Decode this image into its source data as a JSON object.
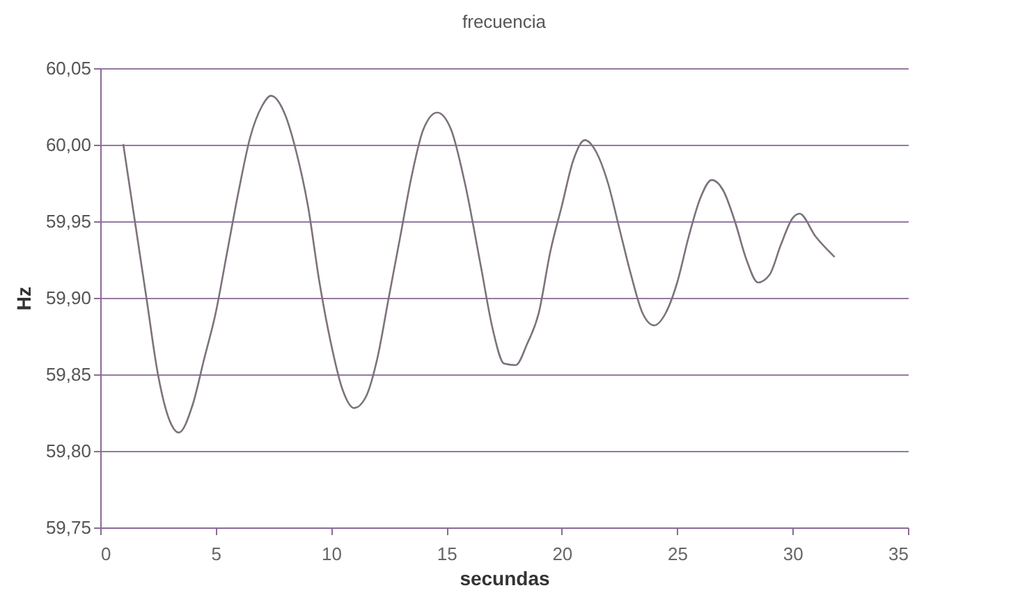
{
  "chart_data": {
    "type": "line",
    "title": "frecuencia",
    "xlabel": "secundas",
    "ylabel": "Hz",
    "x": [
      1,
      1.5,
      2,
      2.5,
      3,
      3.4,
      4,
      4.5,
      5,
      5.5,
      6,
      6.5,
      7,
      7.4,
      8,
      8.5,
      9,
      9.5,
      10,
      10.5,
      11,
      11.5,
      12,
      12.5,
      13,
      13.5,
      14,
      14.6,
      15.2,
      15.8,
      16.5,
      17,
      17.5,
      18,
      18.5,
      19,
      19.5,
      20,
      20.5,
      21,
      21.5,
      22,
      22.5,
      23,
      23.5,
      24,
      24.5,
      25,
      25.5,
      26,
      26.5,
      27,
      27.5,
      28,
      28.5,
      29,
      29.5,
      30,
      30.3,
      31,
      31.8
    ],
    "series": [
      {
        "color": "#7d727d",
        "values": [
          60.0,
          59.95,
          59.9,
          59.85,
          59.82,
          59.812,
          59.83,
          59.86,
          59.89,
          59.93,
          59.97,
          60.005,
          60.025,
          60.032,
          60.02,
          59.995,
          59.96,
          59.91,
          59.87,
          59.84,
          59.828,
          59.835,
          59.86,
          59.9,
          59.94,
          59.98,
          60.01,
          60.021,
          60.01,
          59.975,
          59.92,
          59.88,
          59.857,
          59.856,
          59.87,
          59.89,
          59.93,
          59.96,
          59.99,
          60.003,
          59.995,
          59.975,
          59.945,
          59.915,
          59.89,
          59.882,
          59.89,
          59.91,
          59.94,
          59.965,
          59.977,
          59.97,
          59.95,
          59.925,
          59.91,
          59.915,
          59.935,
          59.952,
          59.955,
          59.94,
          59.927
        ]
      }
    ],
    "xlim": [
      0,
      35
    ],
    "xticks": [
      0,
      5,
      10,
      15,
      20,
      25,
      30,
      35
    ],
    "ylim": [
      59.75,
      60.05
    ],
    "yticks": [
      {
        "value": 59.75,
        "label": "59,75"
      },
      {
        "value": 59.8,
        "label": "59,80"
      },
      {
        "value": 59.85,
        "label": "59,85"
      },
      {
        "value": 59.9,
        "label": "59,90"
      },
      {
        "value": 59.95,
        "label": "59,95"
      },
      {
        "value": 60.0,
        "label": "60,00"
      },
      {
        "value": 60.05,
        "label": "60,05"
      }
    ],
    "grid": "y",
    "marker": "none",
    "line_style": "solid"
  }
}
